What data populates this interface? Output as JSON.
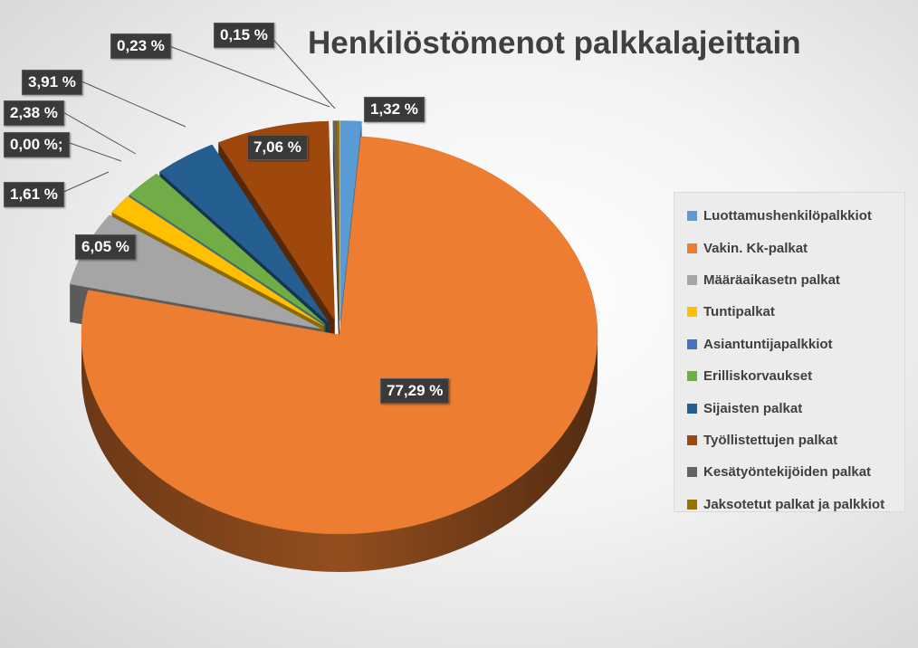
{
  "chart_data": {
    "type": "pie",
    "title": "Henkilöstömenot palkkalajeittain",
    "labels": [
      "Luottamushenkilöpalkkiot",
      "Vakin. Kk-palkat",
      "Määräaikasetn palkat",
      "Tuntipalkat",
      "Asiantuntijapalkkiot",
      "Erilliskorvaukset",
      "Sijaisten palkat",
      "Työllistettujen palkat",
      "Kesätyöntekijöiden palkat",
      "Jaksotetut palkat ja palkkiot"
    ],
    "values": [
      1.32,
      77.29,
      6.05,
      1.61,
      0.0,
      2.38,
      3.91,
      7.06,
      0.23,
      0.15
    ],
    "data_labels": [
      "1,32 %",
      "77,29 %",
      "6,05 %",
      "1,61 %",
      "0,00 %;",
      "2,38 %",
      "3,91 %",
      "7,06 %",
      "0,23 %",
      "0,15 %"
    ],
    "colors": [
      "#5b9bd5",
      "#ed7d31",
      "#a5a5a5",
      "#ffc000",
      "#4472c4",
      "#70ad47",
      "#255e91",
      "#9e480e",
      "#636363",
      "#997300"
    ],
    "exploded": true,
    "legend_position": "right"
  }
}
